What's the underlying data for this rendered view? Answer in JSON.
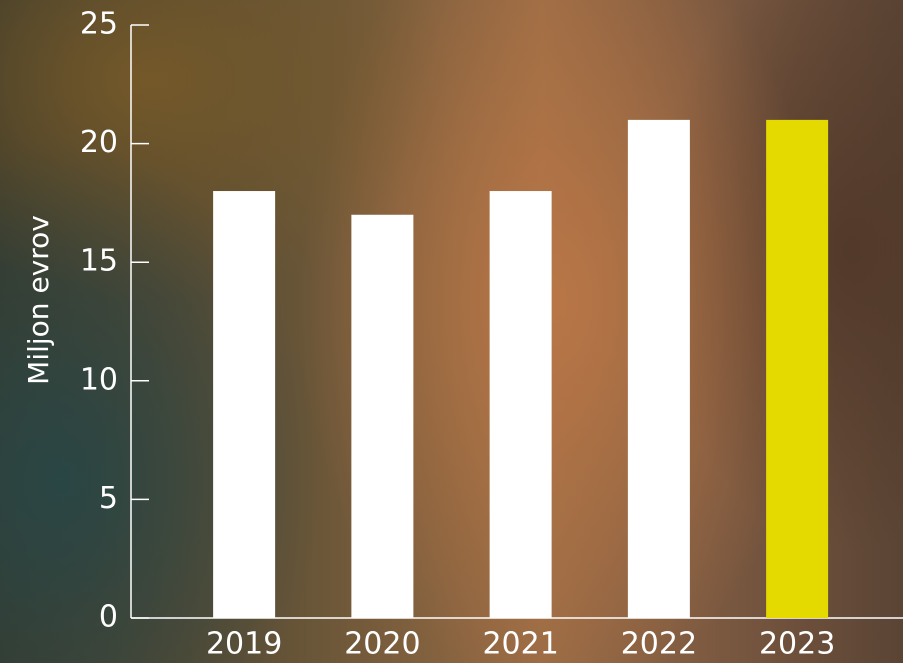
{
  "chart_data": {
    "type": "bar",
    "y_label": "Miljon evrov",
    "categories": [
      "2019",
      "2020",
      "2021",
      "2022",
      "2023"
    ],
    "values": [
      18,
      17,
      18,
      21,
      21
    ],
    "colors": [
      "#ffffff",
      "#ffffff",
      "#ffffff",
      "#ffffff",
      "#e5da00"
    ],
    "ylim": [
      0,
      25
    ],
    "yticks": [
      0,
      5,
      10,
      15,
      20,
      25
    ]
  }
}
